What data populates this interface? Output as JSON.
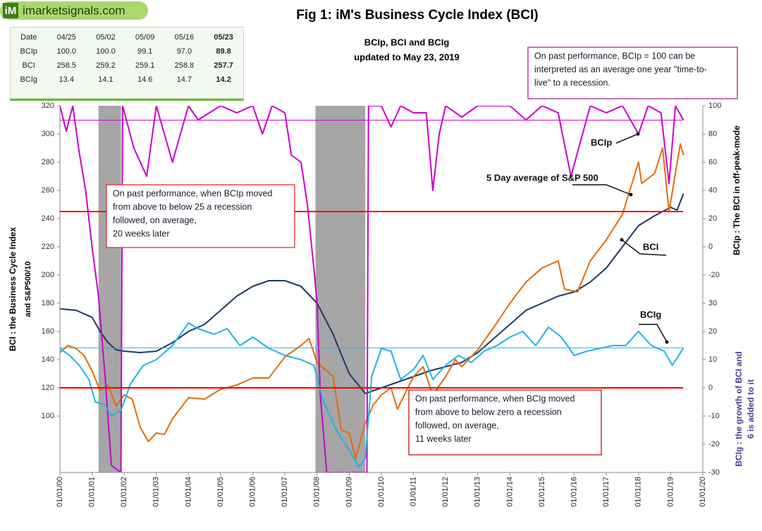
{
  "logo": {
    "icon": "iM",
    "text": "imarketsignals.com"
  },
  "table": {
    "rows": [
      [
        "Date",
        "04/25",
        "05/02",
        "05/09",
        "05/16",
        "05/23"
      ],
      [
        "BCIp",
        "100.0",
        "100.0",
        "99.1",
        "97.0",
        "89.8"
      ],
      [
        "BCI",
        "258.5",
        "259.2",
        "259.1",
        "258.8",
        "257.7"
      ],
      [
        "BCIg",
        "13.4",
        "14.1",
        "14.6",
        "14.7",
        "14.2"
      ]
    ]
  },
  "chart_data": {
    "type": "line",
    "title": "Fig 1:  iM's Business Cycle Index (BCI)",
    "subtitle": [
      "BCIp, BCI and BCIg",
      "updated to May 23, 2019"
    ],
    "ylabel": [
      "BCI : the Business  Cycle  Index",
      "and   S&P500/10"
    ],
    "y2label": "BCIp :  The BCI in off-peak-mode",
    "y3label": [
      "BCIg :  the growth of BCI and",
      "6 is added to it"
    ],
    "xlim": [
      2000,
      2020
    ],
    "xticks": [
      {
        "value": 2000,
        "label": "01/01/00"
      },
      {
        "value": 2001,
        "label": "01/01/01"
      },
      {
        "value": 2002,
        "label": "01/01/02"
      },
      {
        "value": 2003,
        "label": "01/01/03"
      },
      {
        "value": 2004,
        "label": "01/01/04"
      },
      {
        "value": 2005,
        "label": "01/01/05"
      },
      {
        "value": 2006,
        "label": "01/01/06"
      },
      {
        "value": 2007,
        "label": "01/01/07"
      },
      {
        "value": 2008,
        "label": "01/01/08"
      },
      {
        "value": 2009,
        "label": "01/01/09"
      },
      {
        "value": 2010,
        "label": "01/01/10"
      },
      {
        "value": 2011,
        "label": "01/01/11"
      },
      {
        "value": 2012,
        "label": "01/01/12"
      },
      {
        "value": 2013,
        "label": "01/01/13"
      },
      {
        "value": 2014,
        "label": "01/01/14"
      },
      {
        "value": 2015,
        "label": "01/01/15"
      },
      {
        "value": 2016,
        "label": "01/01/16"
      },
      {
        "value": 2017,
        "label": "01/01/17"
      },
      {
        "value": 2018,
        "label": "01/01/18"
      },
      {
        "value": 2019,
        "label": "01/01/19"
      },
      {
        "value": 2020,
        "label": "01/01/20"
      }
    ],
    "ylim": [
      60,
      320
    ],
    "yticks": [
      100,
      120,
      140,
      160,
      180,
      200,
      220,
      240,
      260,
      280,
      300,
      320
    ],
    "y2lim": [
      -160,
      100
    ],
    "y2ticks": [
      -20,
      0,
      20,
      40,
      60,
      80,
      100
    ],
    "y3lim": [
      -30,
      100
    ],
    "y3ticks": [
      -30,
      -20,
      -10,
      0,
      10,
      20,
      30
    ],
    "recessions": [
      [
        2001.2,
        2001.9
      ],
      [
        2007.95,
        2009.5
      ]
    ],
    "recession_color": "#a6a6a6",
    "thresholds": [
      {
        "axis": "y2",
        "value": 25,
        "color": "#ff0000"
      },
      {
        "axis": "y3",
        "value": 0,
        "color": "#ff0000"
      }
    ],
    "series": [
      {
        "name": "BCI",
        "color": "#1f3864",
        "axis": "y",
        "x": [
          2000,
          2000.5,
          2001,
          2001.25,
          2001.5,
          2001.75,
          2002,
          2002.5,
          2003,
          2003.5,
          2004,
          2004.5,
          2005,
          2005.5,
          2006,
          2006.5,
          2007,
          2007.5,
          2008,
          2008.5,
          2009,
          2009.5,
          2010,
          2010.5,
          2011,
          2011.5,
          2012,
          2012.5,
          2013,
          2013.5,
          2014,
          2014.5,
          2015,
          2015.5,
          2016,
          2016.5,
          2017,
          2017.5,
          2018,
          2018.5,
          2019,
          2019.2,
          2019.4
        ],
        "values": [
          176,
          175,
          170,
          160,
          152,
          147,
          146,
          145,
          146,
          152,
          160,
          165,
          175,
          185,
          192,
          196,
          196,
          192,
          180,
          158,
          130,
          116,
          120,
          124,
          128,
          132,
          135,
          138,
          145,
          155,
          165,
          175,
          180,
          185,
          188,
          195,
          205,
          220,
          235,
          242,
          248,
          246,
          257.7
        ]
      },
      {
        "name": "5 Day average of  S&P 500",
        "color": "#e36c09",
        "axis": "y",
        "x": [
          2000,
          2000.25,
          2000.5,
          2000.75,
          2001,
          2001.25,
          2001.5,
          2001.75,
          2002,
          2002.25,
          2002.5,
          2002.75,
          2003,
          2003.25,
          2003.5,
          2004,
          2004.5,
          2005,
          2005.5,
          2006,
          2006.5,
          2007,
          2007.5,
          2007.75,
          2008,
          2008.5,
          2008.75,
          2009,
          2009.2,
          2009.5,
          2009.75,
          2010,
          2010.3,
          2010.5,
          2011,
          2011.3,
          2011.6,
          2012,
          2012.3,
          2012.5,
          2013,
          2013.5,
          2014,
          2014.5,
          2015,
          2015.5,
          2015.7,
          2016.1,
          2016.5,
          2017,
          2017.5,
          2018,
          2018.1,
          2018.5,
          2018.75,
          2018.95,
          2019.3,
          2019.4
        ],
        "values": [
          145,
          150,
          148,
          143,
          132,
          118,
          122,
          107,
          115,
          112,
          92,
          82,
          88,
          87,
          98,
          113,
          112,
          119,
          122,
          127,
          127,
          142,
          150,
          155,
          138,
          128,
          90,
          88,
          70,
          95,
          108,
          115,
          120,
          105,
          128,
          135,
          115,
          128,
          140,
          135,
          147,
          163,
          180,
          195,
          205,
          210,
          190,
          188,
          210,
          225,
          243,
          280,
          265,
          272,
          290,
          245,
          293,
          285
        ]
      },
      {
        "name": "BCIp",
        "color": "#cc00cc",
        "axis": "y2",
        "reference_line": true,
        "x": [
          2000,
          2000.2,
          2000.4,
          2000.6,
          2000.8,
          2001,
          2001.2,
          2001.4,
          2001.6,
          2001.9,
          2001.95,
          2002.3,
          2002.7,
          2003,
          2003.5,
          2004,
          2004.3,
          2005,
          2005.5,
          2006,
          2006.3,
          2006.6,
          2007,
          2007.2,
          2007.5,
          2007.7,
          2007.9,
          2008,
          2008.1,
          2008.3,
          2009.55,
          2009.6,
          2010,
          2010.3,
          2010.6,
          2011,
          2011.4,
          2011.6,
          2011.8,
          2012,
          2012.5,
          2013,
          2014,
          2014.5,
          2015,
          2015.5,
          2015.9,
          2016.2,
          2016.5,
          2017,
          2017.5,
          2018,
          2018.3,
          2018.7,
          2018.95,
          2019.15,
          2019.4
        ],
        "values": [
          100,
          82,
          100,
          67,
          40,
          0,
          -35,
          -90,
          -155,
          -160,
          100,
          70,
          50,
          100,
          60,
          100,
          90,
          100,
          95,
          100,
          80,
          100,
          95,
          65,
          60,
          30,
          -15,
          -40,
          -105,
          -160,
          -160,
          100,
          100,
          85,
          100,
          95,
          95,
          40,
          80,
          100,
          92,
          100,
          100,
          90,
          100,
          95,
          50,
          75,
          100,
          95,
          100,
          80,
          100,
          95,
          45,
          100,
          89.8
        ]
      },
      {
        "name": "BCIg",
        "color": "#1fb4e6",
        "axis": "y3",
        "reference_line": true,
        "x": [
          2000,
          2000.3,
          2000.6,
          2000.9,
          2001.1,
          2001.4,
          2001.6,
          2001.9,
          2002.2,
          2002.6,
          2003,
          2003.5,
          2004,
          2004.3,
          2004.8,
          2005.2,
          2005.6,
          2006,
          2006.5,
          2007,
          2007.5,
          2007.9,
          2008.2,
          2008.6,
          2009,
          2009.3,
          2009.5,
          2009.7,
          2010,
          2010.3,
          2010.6,
          2011,
          2011.3,
          2011.6,
          2012,
          2012.4,
          2012.8,
          2013.2,
          2013.6,
          2014,
          2014.4,
          2014.8,
          2015.2,
          2015.6,
          2016,
          2016.4,
          2016.8,
          2017.2,
          2017.6,
          2018,
          2018.4,
          2018.8,
          2019.05,
          2019.25,
          2019.4
        ],
        "values": [
          14,
          11.5,
          8,
          3,
          -5,
          -6,
          -10,
          -8,
          1.5,
          8,
          10,
          15,
          23,
          21,
          19,
          21,
          15,
          18,
          14,
          11.5,
          10,
          8,
          -5,
          -15,
          -22,
          -28,
          -25,
          4,
          14,
          13,
          3,
          6.5,
          11.5,
          3,
          8,
          11.5,
          9,
          13,
          15,
          18,
          20,
          15,
          21.5,
          18,
          11.5,
          13,
          14,
          15,
          15,
          20,
          15,
          13,
          8,
          11.5,
          14.2
        ]
      }
    ],
    "annotations": [
      {
        "lines": [
          "On past performance, BCIp = 100  can be",
          "interpreted as an average one year \"time-to-",
          "live\" to a recession."
        ],
        "color": "#a0198c"
      },
      {
        "lines": [
          "On past performance,  when BCIp moved",
          "from above to below 25 a recession",
          "followed, on average,",
          "20 weeks later"
        ],
        "color": "#e02020"
      },
      {
        "lines": [
          "On past performance,  when BCIg moved",
          "from above to below zero a recession",
          "followed, on average,",
          "11 weeks later"
        ],
        "color": "#c00000"
      }
    ]
  }
}
